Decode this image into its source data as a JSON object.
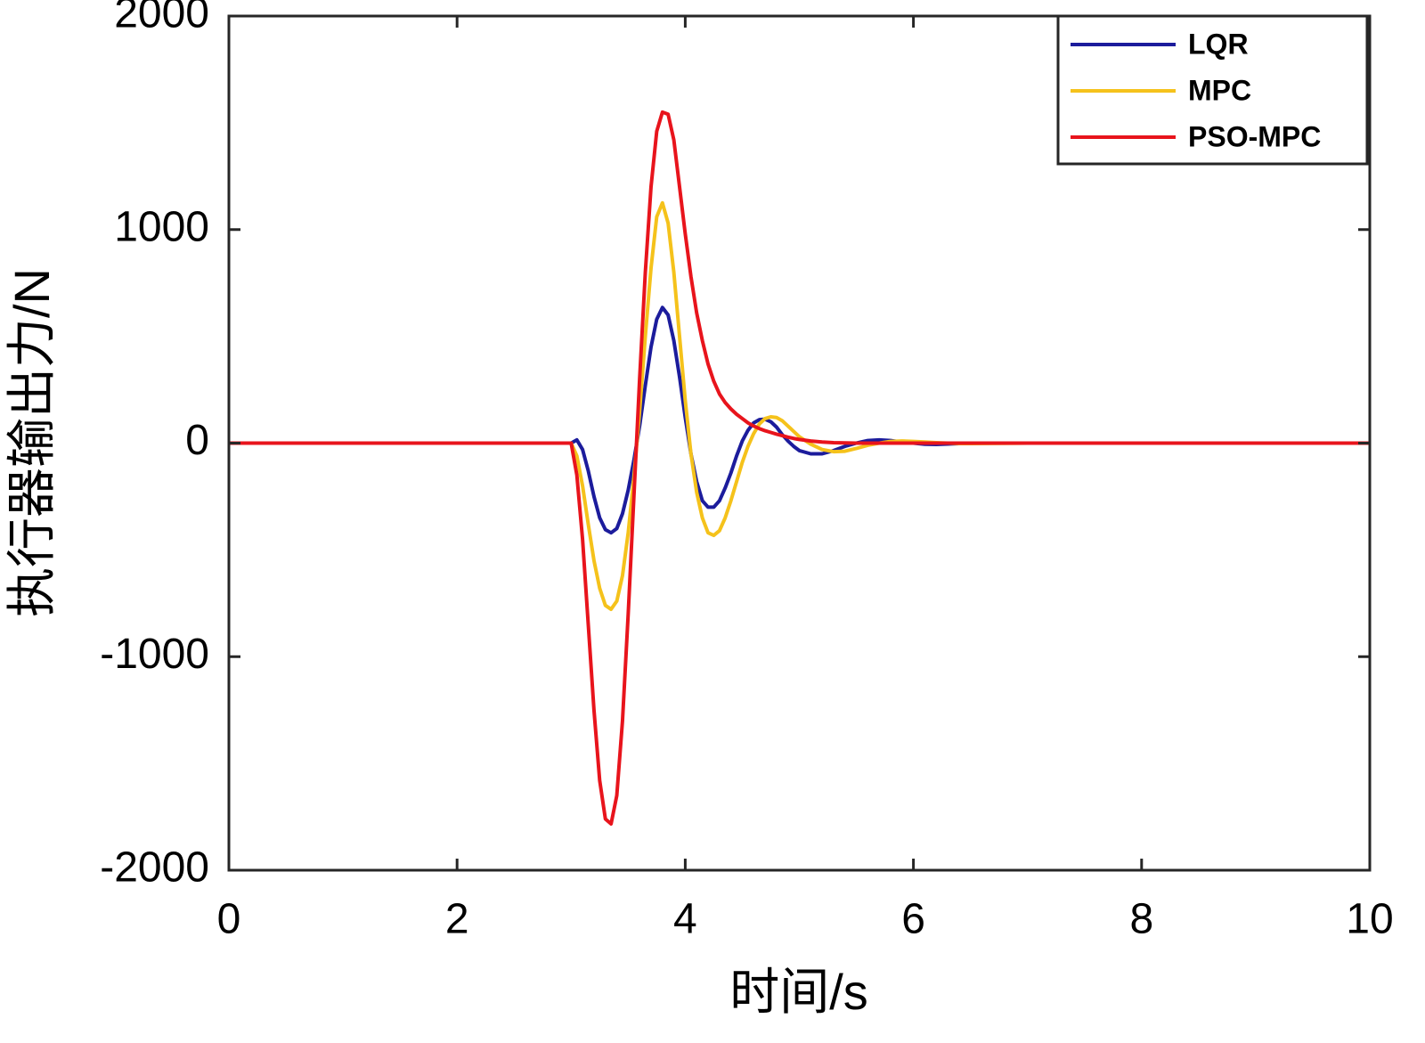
{
  "chart_data": {
    "type": "line",
    "xlabel": "时间/s",
    "ylabel": "执行器输出力/N",
    "x": [
      0,
      1,
      2,
      3.0,
      3.05,
      3.1,
      3.15,
      3.2,
      3.25,
      3.3,
      3.35,
      3.4,
      3.45,
      3.5,
      3.55,
      3.6,
      3.65,
      3.7,
      3.75,
      3.8,
      3.85,
      3.9,
      3.95,
      4.0,
      4.05,
      4.1,
      4.15,
      4.2,
      4.25,
      4.3,
      4.35,
      4.4,
      4.45,
      4.5,
      4.55,
      4.6,
      4.65,
      4.7,
      4.75,
      4.8,
      4.85,
      4.9,
      4.95,
      5.0,
      5.1,
      5.2,
      5.3,
      5.4,
      5.5,
      5.6,
      5.7,
      5.8,
      5.9,
      6.0,
      6.1,
      6.2,
      6.3,
      6.4,
      6.5,
      7,
      8,
      9,
      10
    ],
    "series": [
      {
        "name": "LQR",
        "color": "#1c1c9c",
        "values": [
          0,
          0,
          0,
          0,
          15,
          -30,
          -130,
          -250,
          -350,
          -405,
          -420,
          -400,
          -330,
          -220,
          -80,
          80,
          270,
          450,
          580,
          635,
          600,
          480,
          310,
          120,
          -50,
          -180,
          -270,
          -300,
          -300,
          -270,
          -210,
          -140,
          -60,
          10,
          60,
          95,
          110,
          112,
          100,
          75,
          40,
          10,
          -15,
          -35,
          -50,
          -50,
          -35,
          -15,
          0,
          12,
          15,
          12,
          5,
          0,
          -5,
          -6,
          -4,
          -2,
          0,
          0,
          0,
          0,
          0
        ]
      },
      {
        "name": "MPC",
        "color": "#f5c21b",
        "values": [
          0,
          0,
          0,
          0,
          -60,
          -200,
          -380,
          -550,
          -680,
          -760,
          -778,
          -740,
          -620,
          -420,
          -160,
          150,
          500,
          820,
          1060,
          1125,
          1030,
          800,
          500,
          200,
          -50,
          -230,
          -350,
          -420,
          -432,
          -410,
          -350,
          -270,
          -180,
          -90,
          -15,
          45,
          90,
          115,
          123,
          120,
          105,
          80,
          55,
          30,
          -5,
          -30,
          -40,
          -38,
          -25,
          -10,
          0,
          8,
          10,
          8,
          5,
          2,
          0,
          -2,
          -2,
          0,
          0,
          0,
          0
        ]
      },
      {
        "name": "PSO-MPC",
        "color": "#e8141c",
        "values": [
          0,
          0,
          0,
          0,
          -150,
          -450,
          -850,
          -1250,
          -1580,
          -1760,
          -1783,
          -1650,
          -1300,
          -800,
          -250,
          300,
          800,
          1200,
          1460,
          1550,
          1540,
          1420,
          1200,
          980,
          780,
          610,
          480,
          370,
          290,
          230,
          190,
          160,
          135,
          115,
          95,
          80,
          68,
          58,
          50,
          42,
          35,
          28,
          22,
          17,
          10,
          5,
          2,
          1,
          0,
          0,
          0,
          0,
          0,
          0,
          0,
          0,
          0,
          0,
          0,
          0,
          0,
          0,
          0
        ]
      }
    ],
    "xlim": [
      0,
      10
    ],
    "xticks": [
      0,
      2,
      4,
      6,
      8,
      10
    ],
    "ylim": [
      -2000,
      2000
    ],
    "yticks": [
      -2000,
      -1000,
      0,
      1000,
      2000
    ],
    "grid": false,
    "legend": "upper right"
  }
}
